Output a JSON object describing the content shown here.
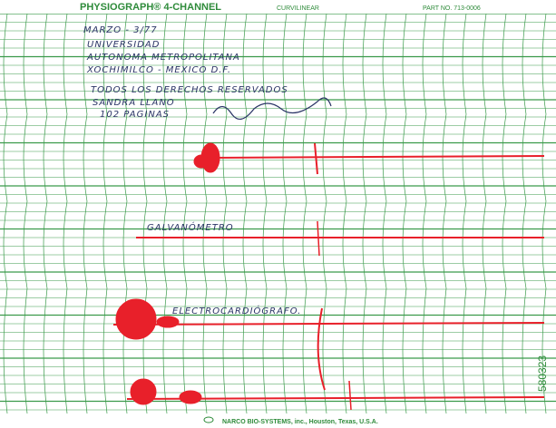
{
  "header": {
    "title": "PHYSIOGRAPH® 4-CHANNEL",
    "type": "CURVILINEAR",
    "part_no": "PART NO. 713-0006"
  },
  "notes": {
    "date": "MARZO - 3/77",
    "lines": [
      "UNIVERSIDAD",
      "AUTONOMA METROPOLITANA",
      "XOCHIMILCO - MEXICO D.F.",
      "TODOS LOS DERECHOS RESERVADOS"
    ],
    "author": "SANDRA LLANO",
    "pages": "102 PAGINAS"
  },
  "labels": {
    "channel_2": "GALVANÓMETRO",
    "channel_3": "ELECTROCARDIÓGRAFO."
  },
  "serial": "580323",
  "footer": "NARCO BIO-SYSTEMS, inc., Houston, Texas, U.S.A."
}
